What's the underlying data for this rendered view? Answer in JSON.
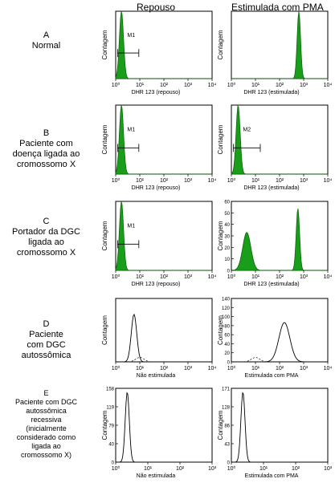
{
  "header": {
    "col_rest": "Repouso",
    "col_stim": "Estimulada com PMA"
  },
  "rows": [
    {
      "letter": "A",
      "lines": [
        "Normal"
      ],
      "left": {
        "ylabel": "Contagem",
        "xlabel": "DHR 123 (repouso)",
        "marker": "M1",
        "ticks": [
          "10⁰",
          "10¹",
          "10²",
          "10³",
          "10⁴"
        ],
        "yticks": []
      },
      "right": {
        "ylabel": "Contagem",
        "xlabel": "DHR 123 (estimulada)",
        "marker": "",
        "ticks": [
          "10⁰",
          "10¹",
          "10²",
          "10³",
          "10⁴"
        ],
        "yticks": []
      }
    },
    {
      "letter": "B",
      "lines": [
        "Paciente com",
        "doença ligada ao",
        "cromossomo X"
      ],
      "left": {
        "ylabel": "Contagem",
        "xlabel": "DHR 123 (repouso)",
        "marker": "M1",
        "ticks": [
          "10⁰",
          "10¹",
          "10²",
          "10³",
          "10⁴"
        ],
        "yticks": []
      },
      "right": {
        "ylabel": "Contagem",
        "xlabel": "DHR 123 (estimulada)",
        "marker": "M2",
        "ticks": [
          "10⁰",
          "10¹",
          "10²",
          "10³",
          "10⁴"
        ],
        "yticks": []
      }
    },
    {
      "letter": "C",
      "lines": [
        "Portador da DGC",
        "ligada ao",
        "cromossomo X"
      ],
      "left": {
        "ylabel": "Contagem",
        "xlabel": "DHR 123 (repouso)",
        "marker": "M1",
        "ticks": [
          "10⁰",
          "10¹",
          "10²",
          "10³",
          "10⁴"
        ],
        "yticks": []
      },
      "right": {
        "ylabel": "Contagem",
        "xlabel": "DHR 123 (estimulada)",
        "marker": "",
        "ticks": [
          "10⁰",
          "10¹",
          "10²",
          "10³",
          "10⁴"
        ],
        "yticks": [
          "0",
          "10",
          "20",
          "30",
          "40",
          "50",
          "60"
        ]
      }
    },
    {
      "letter": "D",
      "lines": [
        "Paciente",
        "com DGC",
        "autossômica"
      ],
      "left": {
        "ylabel": "Contagem",
        "xlabel": "Não estimulada",
        "marker": "",
        "ticks": [
          "10⁰",
          "10¹",
          "10²",
          "10³",
          "10⁴"
        ],
        "yticks": []
      },
      "right": {
        "ylabel": "Contagem",
        "xlabel": "Estimulada com PMA",
        "marker": "",
        "ticks": [
          "10⁰",
          "10¹",
          "10²",
          "10³",
          "10⁴"
        ],
        "yticks": [
          "0",
          "20",
          "40",
          "60",
          "80",
          "100",
          "120",
          "140"
        ]
      }
    },
    {
      "letter": "E",
      "lines": [
        "Paciente com DGC",
        "autossômica",
        "recessiva",
        "(inicialmente",
        "considerado como",
        "ligada ao",
        "cromossomo X)"
      ],
      "left": {
        "ylabel": "Contagem",
        "xlabel": "Não estimulada",
        "marker": "",
        "ticks": [
          "10⁰",
          "10¹",
          "10²",
          "10³"
        ],
        "yticks": [
          "0",
          "40",
          "79",
          "119",
          "158"
        ]
      },
      "right": {
        "ylabel": "Contagem",
        "xlabel": "Estimulada com PMA",
        "marker": "",
        "ticks": [
          "10⁰",
          "10¹",
          "10²",
          "10³"
        ],
        "yticks": [
          "0",
          "43",
          "86",
          "128",
          "171"
        ]
      }
    }
  ],
  "chart_data": [
    {
      "type": "area",
      "title": "",
      "row": "A",
      "condition": "Repouso",
      "xlabel": "DHR 123 (repouso)",
      "ylabel": "Contagem",
      "xscale": "log",
      "xlim": [
        1,
        10000
      ],
      "peaks_at_decade": [
        0.2
      ],
      "gate": "M1"
    },
    {
      "type": "area",
      "title": "",
      "row": "A",
      "condition": "Estimulada com PMA",
      "xlabel": "DHR 123 (estimulada)",
      "ylabel": "Contagem",
      "xscale": "log",
      "xlim": [
        1,
        10000
      ],
      "peaks_at_decade": [
        2.8
      ]
    },
    {
      "type": "area",
      "title": "",
      "row": "B",
      "condition": "Repouso",
      "xlabel": "DHR 123 (repouso)",
      "ylabel": "Contagem",
      "xscale": "log",
      "xlim": [
        1,
        10000
      ],
      "peaks_at_decade": [
        0.2
      ],
      "gate": "M1"
    },
    {
      "type": "area",
      "title": "",
      "row": "B",
      "condition": "Estimulada com PMA",
      "xlabel": "DHR 123 (estimulada)",
      "ylabel": "Contagem",
      "xscale": "log",
      "xlim": [
        1,
        10000
      ],
      "peaks_at_decade": [
        0.2
      ],
      "gate": "M2"
    },
    {
      "type": "area",
      "title": "",
      "row": "C",
      "condition": "Repouso",
      "xlabel": "DHR 123 (repouso)",
      "ylabel": "Contagem",
      "xscale": "log",
      "xlim": [
        1,
        10000
      ],
      "peaks_at_decade": [
        0.2
      ],
      "gate": "M1"
    },
    {
      "type": "area",
      "title": "",
      "row": "C",
      "condition": "Estimulada com PMA",
      "xlabel": "DHR 123 (estimulada)",
      "ylabel": "Contagem",
      "xscale": "log",
      "xlim": [
        1,
        10000
      ],
      "ylim": [
        0,
        60
      ],
      "peaks_at_decade": [
        0.6,
        2.75
      ]
    },
    {
      "type": "line",
      "title": "",
      "row": "D",
      "condition": "Não estimulada",
      "xlabel": "Não estimulada",
      "ylabel": "Contagem",
      "xscale": "log",
      "xlim": [
        1,
        10000
      ],
      "peaks_at_decade": [
        0.7
      ]
    },
    {
      "type": "line",
      "title": "",
      "row": "D",
      "condition": "Estimulada com PMA",
      "xlabel": "Estimulada com PMA",
      "ylabel": "Contagem",
      "xscale": "log",
      "xlim": [
        1,
        10000
      ],
      "ylim": [
        0,
        140
      ],
      "peaks_at_decade": [
        2.2
      ]
    },
    {
      "type": "line",
      "title": "",
      "row": "E",
      "condition": "Não estimulada",
      "xlabel": "Não estimulada",
      "ylabel": "Contagem",
      "xscale": "log",
      "xlim": [
        1,
        1000
      ],
      "ylim": [
        0,
        158
      ],
      "peaks_at_decade": [
        0.2
      ]
    },
    {
      "type": "line",
      "title": "",
      "row": "E",
      "condition": "Estimulada com PMA",
      "xlabel": "Estimulada com PMA",
      "ylabel": "Contagem",
      "xscale": "log",
      "xlim": [
        1,
        1000
      ],
      "ylim": [
        0,
        171
      ],
      "peaks_at_decade": [
        0.2
      ]
    }
  ]
}
